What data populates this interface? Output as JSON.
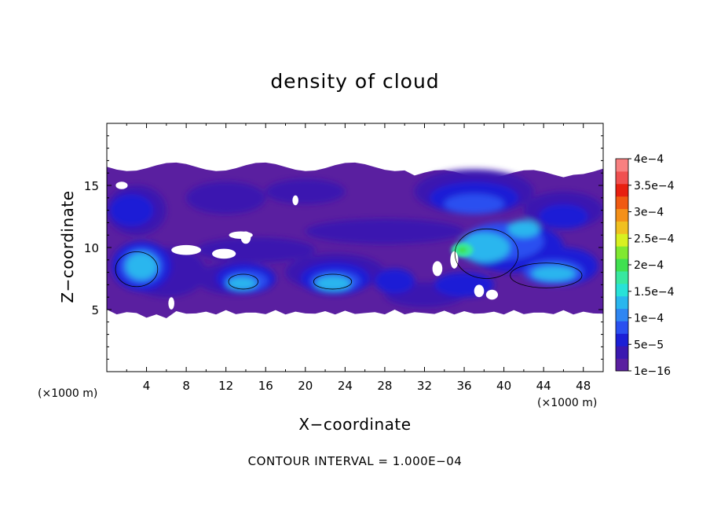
{
  "chart_data": {
    "type": "heatmap",
    "title": "density of cloud",
    "xlabel": "X−coordinate",
    "ylabel": "Z−coordinate",
    "x_unit": "(×1000 m)",
    "y_unit": "(×1000 m)",
    "xlim": [
      0,
      50
    ],
    "ylim": [
      0,
      20
    ],
    "x_ticks": [
      "4",
      "8",
      "12",
      "16",
      "20",
      "24",
      "28",
      "32",
      "36",
      "40",
      "44",
      "48"
    ],
    "x_tick_values": [
      4,
      8,
      12,
      16,
      20,
      24,
      28,
      32,
      36,
      40,
      44,
      48
    ],
    "y_ticks": [
      "5",
      "10",
      "15"
    ],
    "y_tick_values": [
      5,
      10,
      15
    ],
    "footnote": "CONTOUR INTERVAL = 1.000E−04",
    "contour_interval": 0.0001,
    "colorbar": {
      "labels": [
        "4e−4",
        "3.5e−4",
        "3e−4",
        "2.5e−4",
        "2e−4",
        "1.5e−4",
        "1e−4",
        "5e−5",
        "1e−16"
      ],
      "label_values": [
        0.0004,
        0.00035,
        0.0003,
        0.00025,
        0.0002,
        0.00015,
        0.0001,
        5e-05,
        1e-16
      ],
      "colors": [
        "#5a1fa0",
        "#3a18b0",
        "#1b1fd6",
        "#2a50f0",
        "#2f86f2",
        "#2ab6ee",
        "#28e2d8",
        "#38e8a0",
        "#40e050",
        "#80e830",
        "#d8f020",
        "#f0c020",
        "#f49018",
        "#f05a12",
        "#e82010",
        "#f05050",
        "#f88080"
      ]
    },
    "cloud_layer": {
      "x_range": [
        0,
        50
      ],
      "z_bottom": 5,
      "z_top": 16.5
    },
    "high_density_regions": [
      {
        "x_range": [
          0.5,
          5.5
        ],
        "z_range": [
          6.5,
          10
        ],
        "max_value": 0.00015
      },
      {
        "x_range": [
          12,
          15.5
        ],
        "z_range": [
          6.5,
          8
        ],
        "max_value": 0.00012
      },
      {
        "x_range": [
          20.5,
          25
        ],
        "z_range": [
          6.5,
          8
        ],
        "max_value": 0.00012
      },
      {
        "x_range": [
          34.5,
          42
        ],
        "z_range": [
          7,
          12
        ],
        "max_value": 0.0002
      },
      {
        "x_range": [
          40,
          48.5
        ],
        "z_range": [
          6.5,
          9
        ],
        "max_value": 0.00015
      }
    ]
  }
}
